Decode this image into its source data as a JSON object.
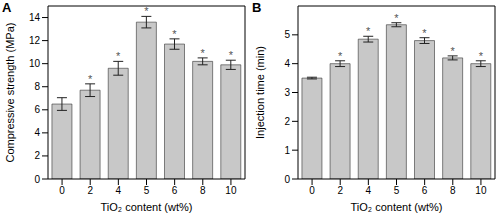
{
  "chart_data": [
    {
      "type": "bar",
      "title": "A",
      "x_label": "TiO₂ content (wt%)",
      "y_label": "Compressive strength (MPa)",
      "categories": [
        "0",
        "2",
        "4",
        "5",
        "6",
        "8",
        "10"
      ],
      "values": [
        6.5,
        7.7,
        9.6,
        13.6,
        11.7,
        10.2,
        9.9
      ],
      "errors": [
        0.55,
        0.55,
        0.6,
        0.5,
        0.45,
        0.3,
        0.4
      ],
      "significance": [
        null,
        "*",
        "*",
        "*",
        "*",
        "*",
        "*"
      ],
      "color": "#c8c8c8",
      "ylim": [
        0,
        15
      ],
      "yticks": [
        0,
        2,
        4,
        6,
        8,
        10,
        12,
        14
      ],
      "grid": false
    },
    {
      "type": "bar",
      "title": "B",
      "x_label": "TiO₂ content (wt%)",
      "y_label": "Injection time (min)",
      "categories": [
        "0",
        "2",
        "4",
        "5",
        "6",
        "8",
        "10"
      ],
      "values": [
        3.5,
        4.0,
        4.85,
        5.35,
        4.8,
        4.2,
        4.0
      ],
      "errors": [
        0.03,
        0.1,
        0.1,
        0.07,
        0.1,
        0.07,
        0.1
      ],
      "significance": [
        null,
        "*",
        "*",
        "*",
        "*",
        "*",
        "*"
      ],
      "color": "#c8c8c8",
      "ylim": [
        0,
        6
      ],
      "yticks": [
        0,
        1,
        2,
        3,
        4,
        5
      ],
      "grid": false
    }
  ]
}
